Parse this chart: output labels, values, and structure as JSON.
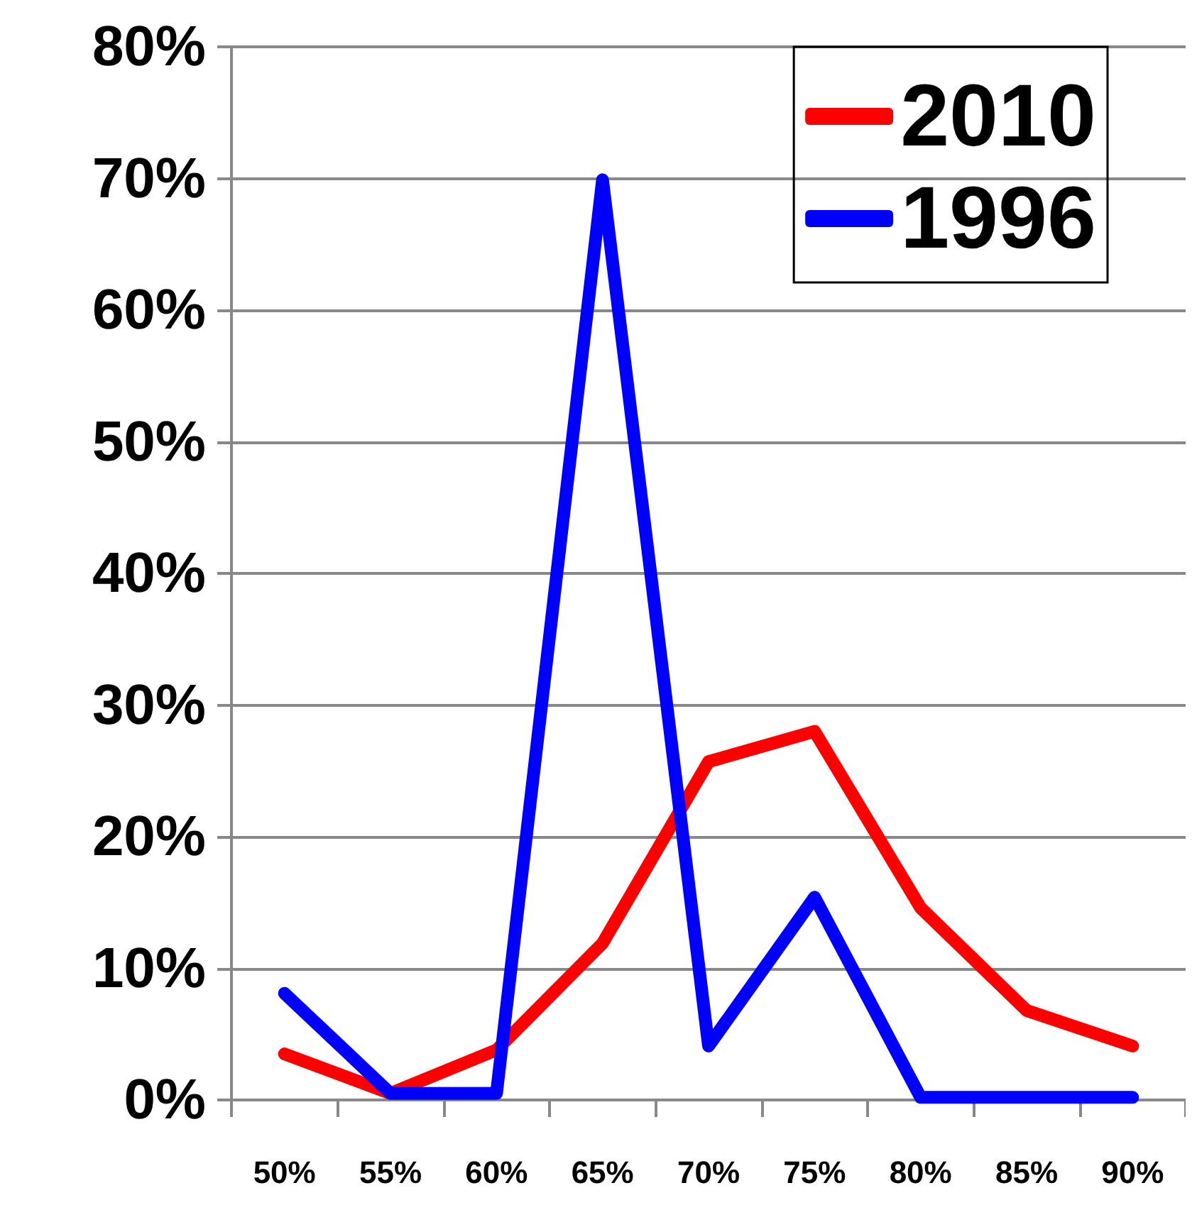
{
  "chart_data": {
    "type": "line",
    "categories": [
      "50%",
      "55%",
      "60%",
      "65%",
      "70%",
      "75%",
      "80%",
      "85%",
      "90%"
    ],
    "series": [
      {
        "name": "2010",
        "color": "#ff0000",
        "values": [
          3.5,
          0.5,
          3.8,
          11.9,
          25.7,
          28,
          14.6,
          6.8,
          4.1
        ]
      },
      {
        "name": "1996",
        "color": "#0000ff",
        "values": [
          8.1,
          0.5,
          0.5,
          69.9,
          4.1,
          15.4,
          0.2,
          0.2,
          0.2
        ]
      }
    ],
    "ylim": [
      0,
      80
    ],
    "yticks": [
      {
        "value": 0,
        "label": "0%"
      },
      {
        "value": 10,
        "label": "10%"
      },
      {
        "value": 20,
        "label": "20%"
      },
      {
        "value": 30,
        "label": "30%"
      },
      {
        "value": 40,
        "label": "40%"
      },
      {
        "value": 50,
        "label": "50%"
      },
      {
        "value": 60,
        "label": "60%"
      },
      {
        "value": 70,
        "label": "70%"
      },
      {
        "value": 80,
        "label": "80%"
      }
    ],
    "grid": "y",
    "legend": "top right",
    "marker": "none",
    "line_style": "solid"
  }
}
